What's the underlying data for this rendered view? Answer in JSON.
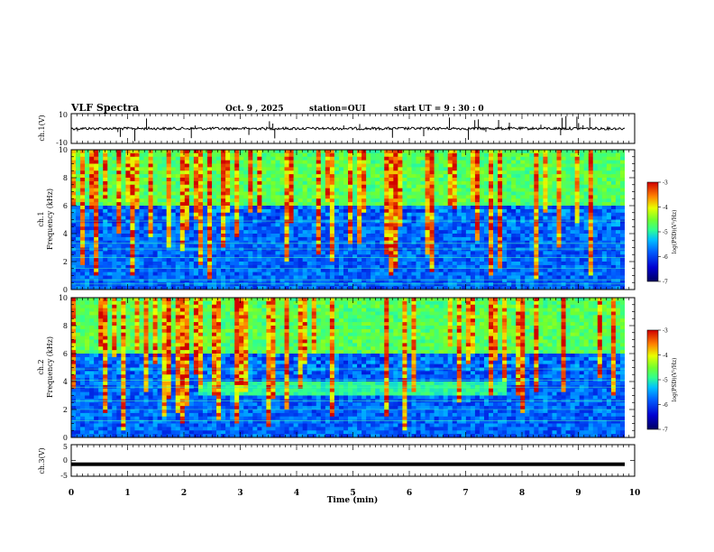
{
  "header": {
    "title": "VLF Spectra",
    "date": "Oct. 9  , 2025",
    "station": "station=OUI",
    "start": "start  UT =   9  : 30 : 0"
  },
  "chart_data": [
    {
      "type": "line",
      "panel": "ch1-waveform",
      "ylabel": "ch.1(V)",
      "ylim": [
        -10,
        10
      ],
      "yticks": [
        "10",
        "-10"
      ],
      "baseline_value": 0,
      "xlim": [
        0,
        10
      ]
    },
    {
      "type": "heatmap",
      "panel": "ch1-spectrogram",
      "ylabel": "ch.1\nFrequency  (kHz)",
      "ylim": [
        0,
        10
      ],
      "yticks": [
        "0",
        "2",
        "4",
        "6",
        "8",
        "10"
      ],
      "xlim": [
        0,
        10
      ],
      "colorbar": {
        "label": "log(PSD)(V²/Hz)",
        "range": [
          -7,
          -3
        ],
        "ticks": [
          "-3",
          "-4",
          "-5",
          "-6",
          "-7"
        ]
      }
    },
    {
      "type": "heatmap",
      "panel": "ch2-spectrogram",
      "ylabel": "ch.2\nFrequency  (kHz)",
      "ylim": [
        0,
        10
      ],
      "yticks": [
        "0",
        "2",
        "4",
        "6",
        "8",
        "10"
      ],
      "xlim": [
        0,
        10
      ],
      "colorbar": {
        "label": "log(PSD)(V²/Hz)",
        "range": [
          -7,
          -3
        ],
        "ticks": [
          "-3",
          "-4",
          "-5",
          "-6",
          "-7"
        ]
      }
    },
    {
      "type": "line",
      "panel": "ch3-waveform",
      "ylabel": "ch.3(V)",
      "ylim": [
        -5,
        5
      ],
      "yticks": [
        "5",
        "0",
        "-5"
      ],
      "baseline_value": -1.2,
      "xlim": [
        0,
        10
      ]
    }
  ],
  "xaxis": {
    "label": "Time  (min)",
    "ticks": [
      "0",
      "1",
      "2",
      "3",
      "4",
      "5",
      "6",
      "7",
      "8",
      "9",
      "10"
    ]
  },
  "colors": {
    "axis": "#000000",
    "spectrum_low": "#00008c",
    "spectrum_high": "#d00000"
  }
}
